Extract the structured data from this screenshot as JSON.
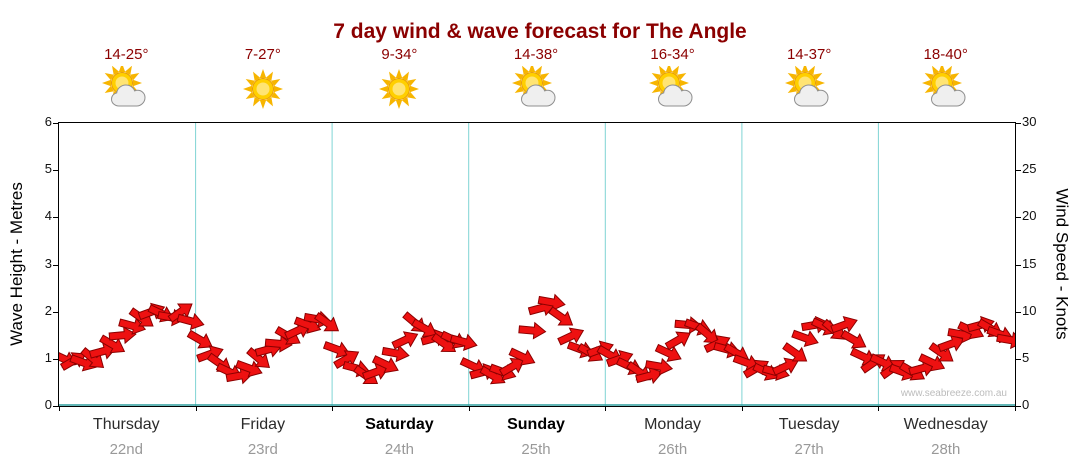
{
  "title": "7 day wind & wave forecast for The Angle",
  "watermark": "www.seabreeze.com.au",
  "axes": {
    "left_label": "Wave Height - Metres",
    "right_label": "Wind Speed - Knots",
    "left_min": 0,
    "left_max": 6,
    "left_step": 1,
    "right_min": 0,
    "right_max": 30,
    "right_step": 5
  },
  "days": [
    {
      "name": "Thursday",
      "date": "22nd",
      "temp": "14-25°",
      "icon": "sun-cloud",
      "weekend": false
    },
    {
      "name": "Friday",
      "date": "23rd",
      "temp": "7-27°",
      "icon": "sun",
      "weekend": false
    },
    {
      "name": "Saturday",
      "date": "24th",
      "temp": "9-34°",
      "icon": "sun",
      "weekend": true
    },
    {
      "name": "Sunday",
      "date": "25th",
      "temp": "14-38°",
      "icon": "sun-cloud",
      "weekend": true
    },
    {
      "name": "Monday",
      "date": "26th",
      "temp": "16-34°",
      "icon": "sun-cloud",
      "weekend": false
    },
    {
      "name": "Tuesday",
      "date": "27th",
      "temp": "14-37°",
      "icon": "sun-cloud",
      "weekend": false
    },
    {
      "name": "Wednesday",
      "date": "28th",
      "temp": "18-40°",
      "icon": "sun-cloud",
      "weekend": false
    }
  ],
  "colors": {
    "title": "#8b0000",
    "temp": "#8b0000",
    "day_name": "#2b2b2b",
    "date": "#999999",
    "grid": "#7fd4d4",
    "x_axis_line": "#2e9e9e",
    "axis": "#000000",
    "arrow_fill": "#ee1111",
    "arrow_stroke": "#8b0000",
    "watermark": "#bcbcbc",
    "sun": "#ffcf00",
    "sun_ray": "#f7b500",
    "cloud": "#efefef"
  },
  "chart_data": {
    "type": "scatter",
    "title": "7 day wind & wave forecast for The Angle",
    "categories": [
      "Thursday 22nd",
      "Friday 23rd",
      "Saturday 24th",
      "Sunday 25th",
      "Monday 26th",
      "Tuesday 27th",
      "Wednesday 28th"
    ],
    "ylabel_left": "Wave Height - Metres",
    "ylabel_right": "Wind Speed - Knots",
    "ylim_left": [
      0,
      6
    ],
    "ylim_right": [
      0,
      30
    ],
    "grid": "vertical day separators only",
    "samples_per_day": 14,
    "wind_knots": [
      5,
      4.8,
      4.6,
      5,
      5.8,
      6.5,
      7.5,
      8.5,
      9.3,
      10,
      9.8,
      9.4,
      10,
      9,
      7,
      5.5,
      4.5,
      3.6,
      3.2,
      4,
      5,
      6,
      6.6,
      7.4,
      8,
      8.6,
      9.2,
      8.8,
      6,
      5,
      4,
      3.2,
      3.6,
      4.4,
      5.6,
      7,
      8.8,
      8.2,
      7.2,
      6.6,
      7,
      6.8,
      4.2,
      3.6,
      3.2,
      3.6,
      4.2,
      5.2,
      8,
      10.4,
      11,
      9.4,
      7.4,
      6,
      5.6,
      6,
      5.4,
      5,
      4.2,
      3.6,
      3.2,
      4.2,
      5.6,
      7,
      8.6,
      8.4,
      7.6,
      6.6,
      6,
      5.6,
      4.6,
      4,
      3.6,
      3.6,
      4.2,
      5.6,
      7.2,
      8.6,
      8.4,
      8,
      8.6,
      7,
      5.2,
      4.6,
      4.6,
      4,
      3.6,
      3.6,
      4,
      4.6,
      5.6,
      6.6,
      7.6,
      8,
      8.6,
      8.2,
      7.6,
      7
    ],
    "wind_dir_deg": [
      25,
      -30,
      20,
      40,
      -15,
      30,
      -5,
      15,
      35,
      -20,
      25,
      10,
      -35,
      15,
      30,
      -20,
      35,
      25,
      -10,
      20,
      40,
      -15,
      5,
      30,
      -25,
      20,
      10,
      35,
      20,
      -30,
      15,
      35,
      -20,
      25,
      10,
      -25,
      40,
      30,
      -15,
      35,
      25,
      15,
      25,
      -15,
      30,
      20,
      -30,
      25,
      5,
      -15,
      10,
      35,
      -25,
      20,
      30,
      -20,
      30,
      -20,
      25,
      35,
      -15,
      10,
      25,
      -30,
      5,
      20,
      40,
      -25,
      15,
      30,
      20,
      -30,
      25,
      15,
      -25,
      35,
      20,
      -10,
      25,
      40,
      -20,
      30,
      25,
      -35,
      25,
      -35,
      20,
      30,
      -15,
      25,
      35,
      -20,
      10,
      25,
      -15,
      30,
      20,
      10
    ],
    "temps_c": [
      "14-25",
      "7-27",
      "9-34",
      "14-38",
      "16-34",
      "14-37",
      "18-40"
    ],
    "conditions": [
      "partly-cloudy",
      "sunny",
      "sunny",
      "partly-cloudy",
      "partly-cloudy",
      "partly-cloudy",
      "partly-cloudy"
    ]
  }
}
